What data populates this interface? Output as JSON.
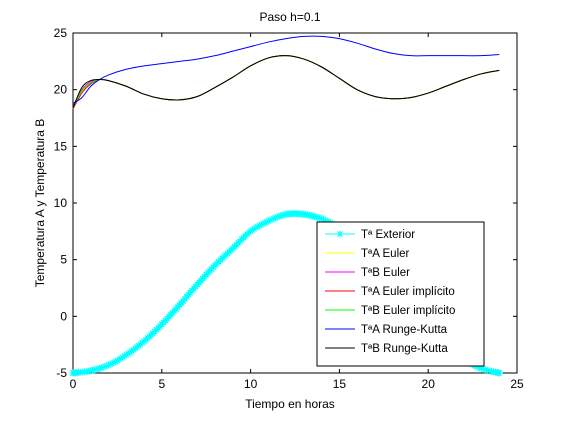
{
  "chart_data": {
    "type": "line",
    "title": "Paso h=0.1",
    "xlabel": "Tiempo en horas",
    "ylabel": "Temperatura A y Temperatura B",
    "xlim": [
      0,
      25
    ],
    "ylim": [
      -5,
      25
    ],
    "xticks": [
      0,
      5,
      10,
      15,
      20,
      25
    ],
    "yticks": [
      -5,
      0,
      5,
      10,
      15,
      20,
      25
    ],
    "grid": false,
    "legend_position": "bottom-right",
    "series": [
      {
        "name": "Tª Exterior",
        "color": "#00ffff",
        "marker": "star",
        "x": [
          0,
          1,
          2,
          3,
          4,
          5,
          6,
          7,
          8,
          9,
          10,
          11,
          12,
          13,
          14,
          15,
          16,
          17,
          18,
          19,
          20,
          21,
          22,
          23,
          24
        ],
        "y": [
          -5.0,
          -4.8,
          -4.3,
          -3.4,
          -2.2,
          -0.7,
          1.0,
          2.8,
          4.5,
          6.0,
          7.5,
          8.4,
          9.0,
          9.0,
          8.6,
          7.8,
          6.5,
          5.0,
          3.0,
          1.2,
          -0.8,
          -2.5,
          -3.8,
          -4.6,
          -5.0
        ]
      },
      {
        "name": "TªA Euler",
        "color": "#ffff00",
        "x": [
          0,
          0.5,
          1,
          1.5,
          2,
          3,
          4,
          5,
          6,
          7,
          8,
          9,
          10,
          11,
          12,
          13,
          14,
          15,
          16,
          17,
          18,
          19,
          20,
          21,
          22,
          23,
          24
        ],
        "y": [
          18.3,
          19.8,
          20.6,
          20.9,
          20.8,
          20.3,
          19.6,
          19.2,
          19.1,
          19.4,
          20.2,
          21.1,
          22.1,
          22.8,
          23.0,
          22.7,
          22.0,
          21.0,
          20.0,
          19.4,
          19.2,
          19.3,
          19.7,
          20.3,
          20.9,
          21.4,
          21.7
        ]
      },
      {
        "name": "TªB Euler",
        "color": "#ff00ff",
        "x": [
          0,
          0.5,
          1,
          1.5,
          2,
          3,
          4,
          5,
          6,
          7,
          8,
          9,
          10,
          11,
          12,
          13,
          14,
          15,
          16,
          17,
          18,
          19,
          20,
          21,
          22,
          23,
          24
        ],
        "y": [
          18.5,
          20.0,
          20.7,
          20.9,
          20.8,
          20.3,
          19.6,
          19.2,
          19.1,
          19.4,
          20.2,
          21.1,
          22.1,
          22.8,
          23.0,
          22.7,
          22.0,
          21.0,
          20.0,
          19.4,
          19.2,
          19.3,
          19.7,
          20.3,
          20.9,
          21.4,
          21.7
        ]
      },
      {
        "name": "TªA Euler implícito",
        "color": "#ff0000",
        "x": [
          0,
          0.5,
          1,
          1.5,
          2,
          3,
          4,
          5,
          6,
          7,
          8,
          9,
          10,
          11,
          12,
          13,
          14,
          15,
          16,
          17,
          18,
          19,
          20,
          21,
          22,
          23,
          24
        ],
        "y": [
          18.3,
          19.7,
          20.5,
          20.9,
          20.8,
          20.3,
          19.6,
          19.2,
          19.1,
          19.4,
          20.2,
          21.1,
          22.1,
          22.8,
          23.0,
          22.7,
          22.0,
          21.0,
          20.0,
          19.4,
          19.2,
          19.3,
          19.7,
          20.3,
          20.9,
          21.4,
          21.7
        ]
      },
      {
        "name": "TªB Euler implícito",
        "color": "#00ff00",
        "x": [
          0,
          0.5,
          1,
          1.5,
          2,
          3,
          4,
          5,
          6,
          7,
          8,
          9,
          10,
          11,
          12,
          13,
          14,
          15,
          16,
          17,
          18,
          19,
          20,
          21,
          22,
          23,
          24
        ],
        "y": [
          18.4,
          19.9,
          20.6,
          20.9,
          20.8,
          20.3,
          19.6,
          19.2,
          19.1,
          19.4,
          20.2,
          21.1,
          22.1,
          22.8,
          23.0,
          22.7,
          22.0,
          21.0,
          20.0,
          19.4,
          19.2,
          19.3,
          19.7,
          20.3,
          20.9,
          21.4,
          21.7
        ]
      },
      {
        "name": "TªA Runge-Kutta",
        "color": "#0000ff",
        "x": [
          0,
          0.5,
          1,
          1.5,
          2,
          3,
          4,
          5,
          6,
          7,
          8,
          9,
          10,
          11,
          12,
          13,
          14,
          15,
          16,
          17,
          18,
          19,
          20,
          21,
          22,
          23,
          24
        ],
        "y": [
          18.8,
          19.3,
          20.3,
          20.9,
          21.3,
          21.8,
          22.1,
          22.3,
          22.5,
          22.7,
          23.0,
          23.4,
          23.8,
          24.2,
          24.5,
          24.7,
          24.7,
          24.5,
          24.1,
          23.6,
          23.2,
          23.0,
          23.0,
          23.0,
          23.0,
          23.0,
          23.1
        ]
      },
      {
        "name": "TªB Runge-Kutta",
        "color": "#000000",
        "x": [
          0,
          0.5,
          1,
          1.5,
          2,
          3,
          4,
          5,
          6,
          7,
          8,
          9,
          10,
          11,
          12,
          13,
          14,
          15,
          16,
          17,
          18,
          19,
          20,
          21,
          22,
          23,
          24
        ],
        "y": [
          18.4,
          20.2,
          20.8,
          20.9,
          20.8,
          20.3,
          19.6,
          19.2,
          19.1,
          19.4,
          20.2,
          21.1,
          22.1,
          22.8,
          23.0,
          22.7,
          22.0,
          21.0,
          20.0,
          19.4,
          19.2,
          19.3,
          19.7,
          20.3,
          20.9,
          21.4,
          21.7
        ]
      }
    ]
  }
}
